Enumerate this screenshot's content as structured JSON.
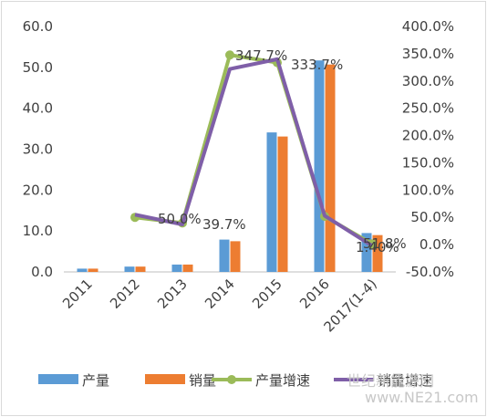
{
  "chart_data": {
    "type": "bar",
    "categories": [
      "2011",
      "2012",
      "2013",
      "2014",
      "2015",
      "2016",
      "2017(1-4)"
    ],
    "series": [
      {
        "name": "产量",
        "kind": "bar",
        "axis": "left",
        "color": "#5b9bd5",
        "values": [
          0.8,
          1.3,
          1.8,
          7.9,
          34.1,
          51.7,
          9.5
        ]
      },
      {
        "name": "销量",
        "kind": "bar",
        "axis": "left",
        "color": "#ed7d31",
        "values": [
          0.8,
          1.3,
          1.8,
          7.5,
          33.1,
          50.7,
          9.0
        ]
      },
      {
        "name": "产量增速",
        "kind": "line",
        "axis": "right",
        "color": "#9bbb59",
        "values": [
          null,
          50.0,
          39.7,
          347.7,
          333.7,
          51.8,
          1.4
        ]
      },
      {
        "name": "销量增速",
        "kind": "line",
        "axis": "right",
        "color": "#7f5fa8",
        "values": [
          null,
          55,
          37,
          322,
          340,
          53,
          -2
        ]
      }
    ],
    "y_left": {
      "ylim": [
        0,
        60
      ],
      "ticks": [
        "0.0",
        "10.0",
        "20.0",
        "30.0",
        "40.0",
        "50.0",
        "60.0"
      ]
    },
    "y_right": {
      "ylim": [
        -50,
        400
      ],
      "ticks": [
        "-50.0%",
        "0.0%",
        "50.0%",
        "100.0%",
        "150.0%",
        "200.0%",
        "250.0%",
        "300.0%",
        "350.0%",
        "400.0%"
      ]
    },
    "data_labels": [
      "50.0%",
      "39.7%",
      "347.7%",
      "333.7%",
      "51.8%",
      "1.40%"
    ],
    "legend_position": "bottom",
    "grid": false
  },
  "watermark": "世纪新能源网 www.NE21.com"
}
